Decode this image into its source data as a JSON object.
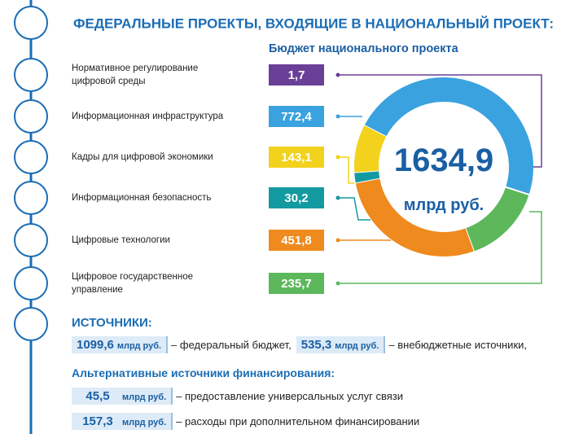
{
  "chart_data": {
    "type": "donut",
    "title": "ФЕДЕРАЛЬНЫЕ ПРОЕКТЫ, ВХОДЯЩИЕ В НАЦИОНАЛЬНЫЙ ПРОЕКТ:",
    "subtitle": "Бюджет национального проекта",
    "categories": [
      "Нормативное регулирование цифровой среды",
      "Информационная инфраструктура",
      "Кадры для цифровой экономики",
      "Информационная безопасность",
      "Цифровые технологии",
      "Цифровое государственное управление"
    ],
    "values": [
      1.7,
      772.4,
      143.1,
      30.2,
      451.8,
      235.7
    ],
    "value_labels": [
      "1,7",
      "772,4",
      "143,1",
      "30,2",
      "451,8",
      "235,7"
    ],
    "colors": [
      "#6a3f97",
      "#3aa2df",
      "#f2d21c",
      "#139aa0",
      "#ee8a1e",
      "#5cb85b"
    ],
    "center_text": "1634,9",
    "center_unit": "млрд руб."
  },
  "sources": {
    "title": "ИСТОЧНИКИ:",
    "items": [
      {
        "value": "1099,6",
        "unit": "млрд руб.",
        "text": "– федеральный бюджет,"
      },
      {
        "value": "535,3",
        "unit": "млрд руб.",
        "text": "– внебюджетные источники,"
      }
    ],
    "alt_title": "Альтернативные источники финансирования:",
    "alt_items": [
      {
        "value": "45,5",
        "unit": "млрд руб.",
        "text": "– предоставление универсальных услуг связи"
      },
      {
        "value": "157,3",
        "unit": "млрд руб.",
        "text": "– расходы при дополнительном финансировании"
      }
    ]
  }
}
